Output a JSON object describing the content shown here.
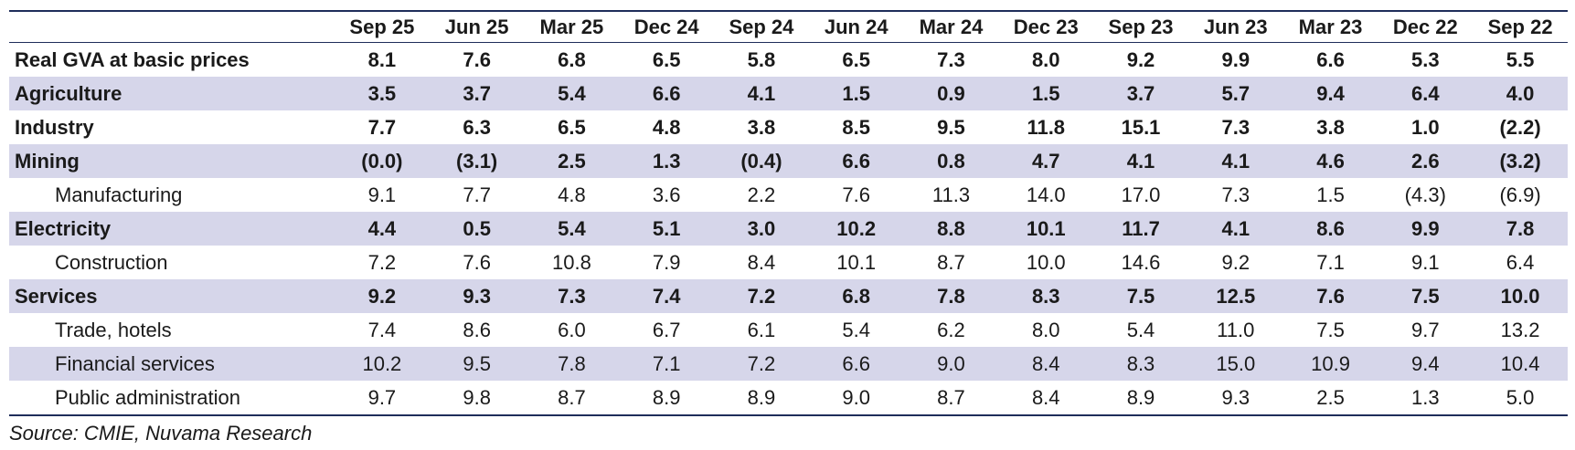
{
  "table": {
    "columns": [
      "Sep 25",
      "Jun 25",
      "Mar 25",
      "Dec 24",
      "Sep 24",
      "Jun 24",
      "Mar 24",
      "Dec 23",
      "Sep 23",
      "Jun 23",
      "Mar 23",
      "Dec 22",
      "Sep 22"
    ],
    "rows": [
      {
        "label": "Real GVA at basic prices",
        "bold": true,
        "values": [
          "8.1",
          "7.6",
          "6.8",
          "6.5",
          "5.8",
          "6.5",
          "7.3",
          "8.0",
          "9.2",
          "9.9",
          "6.6",
          "5.3",
          "5.5"
        ]
      },
      {
        "label": "Agriculture",
        "bold": true,
        "values": [
          "3.5",
          "3.7",
          "5.4",
          "6.6",
          "4.1",
          "1.5",
          "0.9",
          "1.5",
          "3.7",
          "5.7",
          "9.4",
          "6.4",
          "4.0"
        ]
      },
      {
        "label": "Industry",
        "bold": true,
        "values": [
          "7.7",
          "6.3",
          "6.5",
          "4.8",
          "3.8",
          "8.5",
          "9.5",
          "11.8",
          "15.1",
          "7.3",
          "3.8",
          "1.0",
          "(2.2)"
        ]
      },
      {
        "label": "Mining",
        "bold": true,
        "values": [
          "(0.0)",
          "(3.1)",
          "2.5",
          "1.3",
          "(0.4)",
          "6.6",
          "0.8",
          "4.7",
          "4.1",
          "4.1",
          "4.6",
          "2.6",
          "(3.2)"
        ]
      },
      {
        "label": "Manufacturing",
        "bold": false,
        "values": [
          "9.1",
          "7.7",
          "4.8",
          "3.6",
          "2.2",
          "7.6",
          "11.3",
          "14.0",
          "17.0",
          "7.3",
          "1.5",
          "(4.3)",
          "(6.9)"
        ]
      },
      {
        "label": "Electricity",
        "bold": true,
        "values": [
          "4.4",
          "0.5",
          "5.4",
          "5.1",
          "3.0",
          "10.2",
          "8.8",
          "10.1",
          "11.7",
          "4.1",
          "8.6",
          "9.9",
          "7.8"
        ]
      },
      {
        "label": "Construction",
        "bold": false,
        "values": [
          "7.2",
          "7.6",
          "10.8",
          "7.9",
          "8.4",
          "10.1",
          "8.7",
          "10.0",
          "14.6",
          "9.2",
          "7.1",
          "9.1",
          "6.4"
        ]
      },
      {
        "label": "Services",
        "bold": true,
        "values": [
          "9.2",
          "9.3",
          "7.3",
          "7.4",
          "7.2",
          "6.8",
          "7.8",
          "8.3",
          "7.5",
          "12.5",
          "7.6",
          "7.5",
          "10.0"
        ]
      },
      {
        "label": "Trade, hotels",
        "bold": false,
        "values": [
          "7.4",
          "8.6",
          "6.0",
          "6.7",
          "6.1",
          "5.4",
          "6.2",
          "8.0",
          "5.4",
          "11.0",
          "7.5",
          "9.7",
          "13.2"
        ]
      },
      {
        "label": "Financial services",
        "bold": false,
        "values": [
          "10.2",
          "9.5",
          "7.8",
          "7.1",
          "7.2",
          "6.6",
          "9.0",
          "8.4",
          "8.3",
          "15.0",
          "10.9",
          "9.4",
          "10.4"
        ]
      },
      {
        "label": "Public administration",
        "bold": false,
        "values": [
          "9.7",
          "9.8",
          "8.7",
          "8.9",
          "8.9",
          "9.0",
          "8.7",
          "8.4",
          "8.9",
          "9.3",
          "2.5",
          "1.3",
          "5.0"
        ]
      }
    ],
    "source": "Source: CMIE, Nuvama Research"
  }
}
